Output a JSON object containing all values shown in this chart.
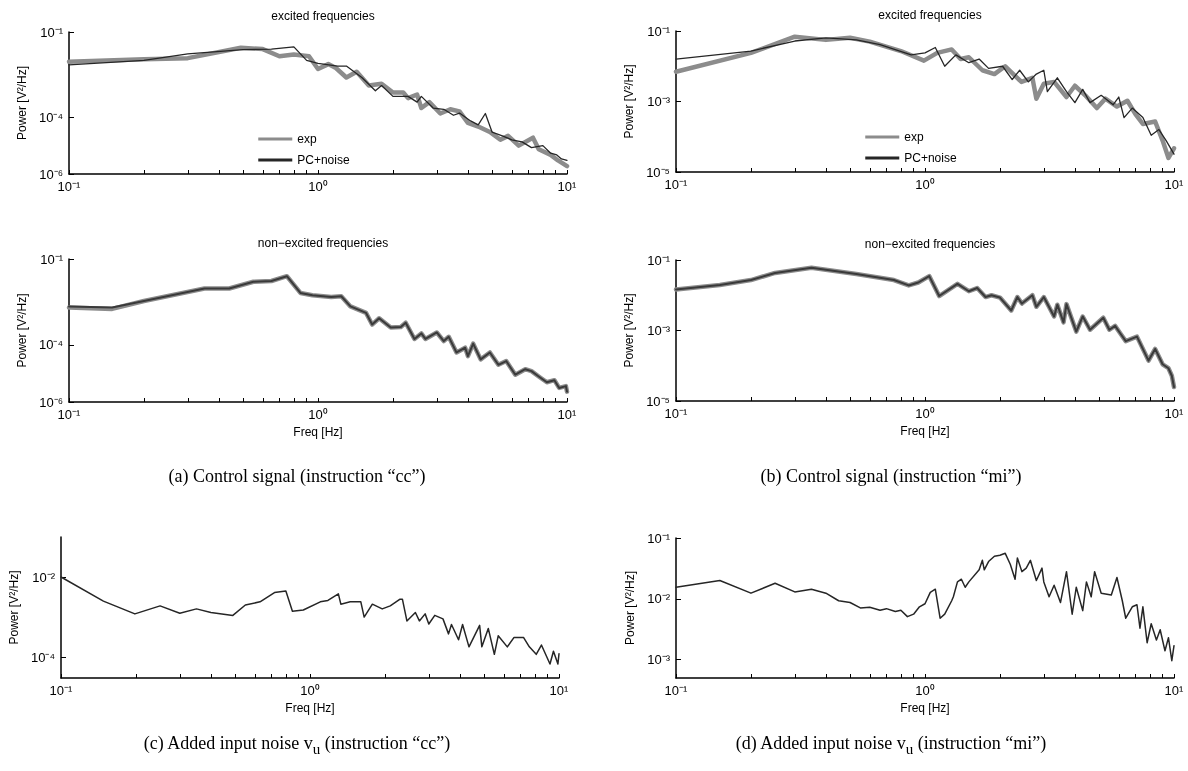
{
  "chart_data": [
    {
      "type": "line",
      "title": "excited frequencies",
      "ylabel": "Power [V²/Hz]",
      "log": "xy",
      "legend": "bottom",
      "xlim": [
        0.1,
        10
      ],
      "xticks": [
        {
          "value": 0.1,
          "label": "10⁻¹"
        },
        {
          "value": 0.2,
          "label": null
        },
        {
          "value": 0.3,
          "label": null
        },
        {
          "value": 0.4,
          "label": null
        },
        {
          "value": 0.5,
          "label": null
        },
        {
          "value": 0.6,
          "label": null
        },
        {
          "value": 0.7,
          "label": null
        },
        {
          "value": 0.8,
          "label": null
        },
        {
          "value": 0.9,
          "label": null
        },
        {
          "value": 1,
          "label": "10⁰"
        },
        {
          "value": 2,
          "label": null
        },
        {
          "value": 3,
          "label": null
        },
        {
          "value": 4,
          "label": null
        },
        {
          "value": 5,
          "label": null
        },
        {
          "value": 6,
          "label": null
        },
        {
          "value": 7,
          "label": null
        },
        {
          "value": 8,
          "label": null
        },
        {
          "value": 9,
          "label": null
        },
        {
          "value": 10,
          "label": "10¹"
        }
      ],
      "ylim": [
        1e-06,
        0.1
      ],
      "yticks": [
        {
          "value": 1e-06,
          "label": "10⁻⁶"
        },
        {
          "value": 0.0001,
          "label": "10⁻⁴"
        },
        {
          "value": 0.1,
          "label": "10⁻¹"
        }
      ],
      "series": [
        {
          "name": "exp",
          "color": "#8c8c8c",
          "x": [
            0.1,
            0.2,
            0.3,
            0.49,
            0.6,
            0.7,
            0.8,
            0.92,
            1.0,
            1.1,
            1.18,
            1.3,
            1.43,
            1.6,
            1.8,
            2.0,
            2.2,
            2.3,
            2.5,
            2.6,
            2.8,
            3.1,
            3.4,
            3.7,
            4.0,
            4.4,
            4.9,
            5.4,
            5.8,
            6.4,
            7.3,
            7.7,
            8.6,
            9.2,
            10
          ],
          "values": [
            0.009,
            0.011,
            0.012,
            0.028,
            0.025,
            0.014,
            0.016,
            0.014,
            0.005,
            0.0074,
            0.0054,
            0.0025,
            0.004,
            0.0013,
            0.0015,
            0.00074,
            0.00074,
            0.00047,
            0.00063,
            0.00021,
            0.00034,
            0.000135,
            0.00019,
            0.00016,
            6.3e-05,
            4.7e-05,
            3e-05,
            1.6e-05,
            2.2e-05,
            1e-05,
            1.9e-05,
            7.4e-06,
            4.7e-06,
            3e-06,
            1.9e-06
          ]
        },
        {
          "name": "PC+noise",
          "color": "#262626",
          "x": [
            0.1,
            0.2,
            0.3,
            0.5,
            0.65,
            0.8,
            0.9,
            1.0,
            1.2,
            1.3,
            1.5,
            1.7,
            1.8,
            2.0,
            2.3,
            2.5,
            2.6,
            2.9,
            3.2,
            3.5,
            3.7,
            4.1,
            4.4,
            4.7,
            5.0,
            5.5,
            6.0,
            6.6,
            7.2,
            8.0,
            8.6,
            9.1,
            9.5,
            10
          ],
          "values": [
            0.007,
            0.01,
            0.017,
            0.024,
            0.025,
            0.03,
            0.01,
            0.0078,
            0.0063,
            0.0063,
            0.0025,
            0.00085,
            0.0013,
            0.00054,
            0.00054,
            0.00034,
            0.00054,
            0.00021,
            0.00019,
            0.000117,
            0.00014,
            7.4e-05,
            5.4e-05,
            0.000135,
            3e-05,
            2.2e-05,
            1.6e-05,
            1.35e-05,
            8.5e-06,
            1e-05,
            5.4e-06,
            4.7e-06,
            3.4e-06,
            3e-06
          ]
        }
      ]
    },
    {
      "type": "line",
      "title": "excited frequencies",
      "ylabel": "Power [V²/Hz]",
      "log": "xy",
      "legend": "bottom",
      "xlim": [
        0.1,
        10
      ],
      "xticks": [
        {
          "value": 0.1,
          "label": "10⁻¹"
        },
        {
          "value": 0.2,
          "label": null
        },
        {
          "value": 0.3,
          "label": null
        },
        {
          "value": 0.4,
          "label": null
        },
        {
          "value": 0.5,
          "label": null
        },
        {
          "value": 0.6,
          "label": null
        },
        {
          "value": 0.7,
          "label": null
        },
        {
          "value": 0.8,
          "label": null
        },
        {
          "value": 0.9,
          "label": null
        },
        {
          "value": 1,
          "label": "10⁰"
        },
        {
          "value": 2,
          "label": null
        },
        {
          "value": 3,
          "label": null
        },
        {
          "value": 4,
          "label": null
        },
        {
          "value": 5,
          "label": null
        },
        {
          "value": 6,
          "label": null
        },
        {
          "value": 7,
          "label": null
        },
        {
          "value": 8,
          "label": null
        },
        {
          "value": 9,
          "label": null
        },
        {
          "value": 10,
          "label": "10¹"
        }
      ],
      "ylim": [
        1e-05,
        0.1
      ],
      "yticks": [
        {
          "value": 1e-05,
          "label": "10⁻⁵"
        },
        {
          "value": 0.001,
          "label": "10⁻³"
        },
        {
          "value": 0.1,
          "label": "10⁻¹"
        }
      ],
      "series": [
        {
          "name": "exp",
          "color": "#8c8c8c",
          "x": [
            0.1,
            0.2,
            0.3,
            0.4,
            0.5,
            0.6,
            0.8,
            0.99,
            1.12,
            1.28,
            1.39,
            1.5,
            1.7,
            1.9,
            2.1,
            2.3,
            2.44,
            2.7,
            2.8,
            3.0,
            3.3,
            3.7,
            4.0,
            4.4,
            4.9,
            5.3,
            5.9,
            6.5,
            7.0,
            7.5,
            8.4,
            9.0,
            9.5,
            10
          ],
          "values": [
            0.007,
            0.024,
            0.069,
            0.056,
            0.064,
            0.05,
            0.027,
            0.0144,
            0.024,
            0.03,
            0.016,
            0.018,
            0.0077,
            0.006,
            0.01,
            0.0053,
            0.0036,
            0.0047,
            0.0012,
            0.0032,
            0.0036,
            0.00134,
            0.0028,
            0.0015,
            0.00065,
            0.0012,
            0.00072,
            0.00105,
            0.00044,
            0.00023,
            0.00027,
            7.8e-05,
            2.5e-05,
            4.7e-05
          ]
        },
        {
          "name": "PC+noise",
          "color": "#262626",
          "x": [
            0.1,
            0.2,
            0.3,
            0.4,
            0.53,
            0.66,
            0.88,
            1.0,
            1.1,
            1.2,
            1.33,
            1.5,
            1.65,
            1.8,
            2.05,
            2.24,
            2.4,
            2.6,
            2.8,
            3.0,
            3.1,
            3.4,
            3.7,
            4.0,
            4.3,
            4.6,
            5.1,
            5.7,
            6.0,
            6.3,
            6.8,
            7.5,
            8.1,
            8.7,
            9.3,
            10
          ],
          "values": [
            0.016,
            0.027,
            0.052,
            0.064,
            0.056,
            0.041,
            0.021,
            0.024,
            0.034,
            0.01,
            0.021,
            0.0126,
            0.016,
            0.0087,
            0.01,
            0.0042,
            0.0077,
            0.0036,
            0.006,
            0.0077,
            0.0019,
            0.0047,
            0.0019,
            0.00093,
            0.0022,
            0.00093,
            0.0015,
            0.00081,
            0.00134,
            0.00035,
            0.00065,
            0.00035,
            0.00011,
            0.00016,
            7.8e-05,
            3.2e-05
          ]
        }
      ]
    },
    {
      "type": "line",
      "title": "non−excited frequencies",
      "xlabel": "Freq [Hz]",
      "ylabel": "Power [V²/Hz]",
      "log": "xy",
      "annotations": [
        "(a)  Control signal (instruction “cc”)"
      ],
      "xlim": [
        0.1,
        10
      ],
      "xticks": [
        {
          "value": 0.1,
          "label": "10⁻¹"
        },
        {
          "value": 0.2,
          "label": null
        },
        {
          "value": 0.3,
          "label": null
        },
        {
          "value": 0.4,
          "label": null
        },
        {
          "value": 0.5,
          "label": null
        },
        {
          "value": 0.6,
          "label": null
        },
        {
          "value": 0.7,
          "label": null
        },
        {
          "value": 0.8,
          "label": null
        },
        {
          "value": 0.9,
          "label": null
        },
        {
          "value": 1,
          "label": "10⁰"
        },
        {
          "value": 2,
          "label": null
        },
        {
          "value": 3,
          "label": null
        },
        {
          "value": 4,
          "label": null
        },
        {
          "value": 5,
          "label": null
        },
        {
          "value": 6,
          "label": null
        },
        {
          "value": 7,
          "label": null
        },
        {
          "value": 8,
          "label": null
        },
        {
          "value": 9,
          "label": null
        },
        {
          "value": 10,
          "label": "10¹"
        }
      ],
      "ylim": [
        1e-06,
        0.1
      ],
      "yticks": [
        {
          "value": 1e-06,
          "label": "10⁻⁶"
        },
        {
          "value": 0.0001,
          "label": "10⁻⁴"
        },
        {
          "value": 0.1,
          "label": "10⁻¹"
        }
      ],
      "series": [
        {
          "color": "#8c8c8c",
          "x": [
            0.1,
            0.149,
            0.2,
            0.35,
            0.44,
            0.55,
            0.65,
            0.75,
            0.85,
            0.95,
            1.13,
            1.24,
            1.35,
            1.56,
            1.65,
            1.76,
            1.96,
            2.15,
            2.25,
            2.44,
            2.6,
            2.7,
            3.0,
            3.2,
            3.35,
            3.6,
            3.9,
            4.0,
            4.2,
            4.5,
            4.9,
            5.3,
            5.7,
            6.2,
            6.8,
            7.2,
            7.7,
            8.3,
            8.9,
            9.3,
            9.9,
            10
          ],
          "values": [
            0.002,
            0.0018,
            0.0034,
            0.0093,
            0.0093,
            0.016,
            0.017,
            0.025,
            0.0065,
            0.0054,
            0.0047,
            0.005,
            0.0022,
            0.0013,
            0.00051,
            0.00085,
            0.0004,
            0.00042,
            0.00059,
            0.00016,
            0.00025,
            0.00016,
            0.00027,
            0.000135,
            0.00019,
            5.4e-05,
            7.9e-05,
            4e-05,
            0.00011,
            3.1e-05,
            5.4e-05,
            2e-05,
            2.7e-05,
            9e-06,
            1.4e-05,
            1.2e-05,
            7.8e-06,
            4.9e-06,
            5.8e-06,
            3.1e-06,
            3.6e-06,
            2.3e-06
          ]
        },
        {
          "color": "#3a3a3a",
          "x": [
            0.1,
            0.149,
            0.2,
            0.35,
            0.44,
            0.55,
            0.65,
            0.75,
            0.85,
            0.95,
            1.13,
            1.24,
            1.35,
            1.56,
            1.65,
            1.76,
            1.96,
            2.15,
            2.25,
            2.44,
            2.6,
            2.7,
            3.0,
            3.2,
            3.35,
            3.6,
            3.9,
            4.0,
            4.2,
            4.5,
            4.9,
            5.3,
            5.7,
            6.2,
            6.8,
            7.2,
            7.7,
            8.3,
            8.9,
            9.3,
            9.9,
            10
          ],
          "values": [
            0.0022,
            0.002,
            0.0034,
            0.0093,
            0.0093,
            0.016,
            0.017,
            0.025,
            0.0065,
            0.0054,
            0.0047,
            0.005,
            0.0022,
            0.0013,
            0.00051,
            0.00085,
            0.0004,
            0.00042,
            0.00059,
            0.00016,
            0.00025,
            0.00016,
            0.00027,
            0.000135,
            0.00019,
            5.4e-05,
            7.9e-05,
            4e-05,
            0.00011,
            3.1e-05,
            5.4e-05,
            2e-05,
            2.7e-05,
            9e-06,
            1.4e-05,
            1.2e-05,
            7.8e-06,
            4.9e-06,
            5.8e-06,
            3.1e-06,
            3.6e-06,
            2.3e-06
          ]
        }
      ]
    },
    {
      "type": "line",
      "title": "non−excited frequencies",
      "xlabel": "Freq [Hz]",
      "ylabel": "Power [V²/Hz]",
      "log": "xy",
      "annotations": [
        "(b)  Control signal (instruction “mi”)"
      ],
      "xlim": [
        0.1,
        10
      ],
      "xticks": [
        {
          "value": 0.1,
          "label": "10⁻¹"
        },
        {
          "value": 0.2,
          "label": null
        },
        {
          "value": 0.3,
          "label": null
        },
        {
          "value": 0.4,
          "label": null
        },
        {
          "value": 0.5,
          "label": null
        },
        {
          "value": 0.6,
          "label": null
        },
        {
          "value": 0.7,
          "label": null
        },
        {
          "value": 0.8,
          "label": null
        },
        {
          "value": 0.9,
          "label": null
        },
        {
          "value": 1,
          "label": "10⁰"
        },
        {
          "value": 2,
          "label": null
        },
        {
          "value": 3,
          "label": null
        },
        {
          "value": 4,
          "label": null
        },
        {
          "value": 5,
          "label": null
        },
        {
          "value": 6,
          "label": null
        },
        {
          "value": 7,
          "label": null
        },
        {
          "value": 8,
          "label": null
        },
        {
          "value": 9,
          "label": null
        },
        {
          "value": 10,
          "label": "10¹"
        }
      ],
      "ylim": [
        1e-05,
        0.1
      ],
      "yticks": [
        {
          "value": 1e-05,
          "label": "10⁻⁵"
        },
        {
          "value": 0.001,
          "label": "10⁻³"
        },
        {
          "value": 0.1,
          "label": "10⁻¹"
        }
      ],
      "series": [
        {
          "color": "#8c8c8c",
          "x": [
            0.1,
            0.15,
            0.2,
            0.25,
            0.35,
            0.53,
            0.75,
            0.86,
            0.94,
            1.04,
            1.14,
            1.35,
            1.5,
            1.62,
            1.75,
            1.85,
            2.0,
            2.22,
            2.35,
            2.45,
            2.7,
            2.8,
            3.0,
            3.3,
            3.4,
            3.6,
            3.7,
            4.05,
            4.3,
            4.6,
            5.2,
            5.5,
            5.8,
            6.1,
            6.4,
            7.1,
            7.9,
            8.4,
            9.0,
            9.5,
            9.8,
            10
          ],
          "values": [
            0.0146,
            0.0196,
            0.027,
            0.043,
            0.06,
            0.04,
            0.027,
            0.019,
            0.023,
            0.035,
            0.0095,
            0.021,
            0.013,
            0.016,
            0.0089,
            0.01,
            0.0086,
            0.0037,
            0.0089,
            0.0058,
            0.01,
            0.0047,
            0.0089,
            0.0025,
            0.0054,
            0.0017,
            0.0056,
            0.00093,
            0.0025,
            0.00105,
            0.0023,
            0.00105,
            0.00135,
            0.00081,
            0.0005,
            0.00067,
            0.00014,
            0.0003,
            0.00011,
            8.5e-05,
            5.2e-05,
            2.5e-05
          ]
        },
        {
          "color": "#3a3a3a",
          "x": [
            0.1,
            0.15,
            0.2,
            0.25,
            0.35,
            0.53,
            0.75,
            0.86,
            0.94,
            1.04,
            1.14,
            1.35,
            1.5,
            1.62,
            1.75,
            1.85,
            2.0,
            2.22,
            2.35,
            2.45,
            2.7,
            2.8,
            3.0,
            3.3,
            3.4,
            3.6,
            3.7,
            4.05,
            4.3,
            4.6,
            5.2,
            5.5,
            5.8,
            6.1,
            6.4,
            7.1,
            7.9,
            8.4,
            9.0,
            9.5,
            9.8,
            10
          ],
          "values": [
            0.0146,
            0.0196,
            0.027,
            0.043,
            0.06,
            0.04,
            0.027,
            0.019,
            0.023,
            0.035,
            0.0095,
            0.021,
            0.013,
            0.016,
            0.0089,
            0.01,
            0.0086,
            0.0037,
            0.0089,
            0.0058,
            0.01,
            0.0047,
            0.0089,
            0.0025,
            0.0054,
            0.0017,
            0.0056,
            0.00093,
            0.0025,
            0.00105,
            0.0023,
            0.00105,
            0.00135,
            0.00081,
            0.0005,
            0.00067,
            0.00014,
            0.0003,
            0.00011,
            8.5e-05,
            5.2e-05,
            2.5e-05
          ]
        }
      ]
    },
    {
      "type": "line",
      "xlabel": "Freq [Hz]",
      "ylabel": "Power [V²/Hz]",
      "log": "xy",
      "annotations": [
        "(c)  Added input noise v$_{u}$ (instruction “cc”)"
      ],
      "xlim": [
        0.1,
        10
      ],
      "xticks": [
        {
          "value": 0.1,
          "label": "10⁻¹"
        },
        {
          "value": 0.2,
          "label": null
        },
        {
          "value": 0.3,
          "label": null
        },
        {
          "value": 0.4,
          "label": null
        },
        {
          "value": 0.5,
          "label": null
        },
        {
          "value": 0.6,
          "label": null
        },
        {
          "value": 0.7,
          "label": null
        },
        {
          "value": 0.8,
          "label": null
        },
        {
          "value": 0.9,
          "label": null
        },
        {
          "value": 1,
          "label": "10⁰"
        },
        {
          "value": 2,
          "label": null
        },
        {
          "value": 3,
          "label": null
        },
        {
          "value": 4,
          "label": null
        },
        {
          "value": 5,
          "label": null
        },
        {
          "value": 6,
          "label": null
        },
        {
          "value": 7,
          "label": null
        },
        {
          "value": 8,
          "label": null
        },
        {
          "value": 9,
          "label": null
        },
        {
          "value": 10,
          "label": "10¹"
        }
      ],
      "ylim": [
        3e-05,
        0.1
      ],
      "yticks": [
        {
          "value": 0.0001,
          "label": "10⁻⁴"
        },
        {
          "value": 0.01,
          "label": "10⁻²"
        }
      ],
      "series": [
        {
          "color": "#262626",
          "x": [
            0.1,
            0.148,
            0.198,
            0.25,
            0.3,
            0.35,
            0.4,
            0.49,
            0.55,
            0.63,
            0.72,
            0.8,
            0.85,
            0.94,
            1.1,
            1.18,
            1.3,
            1.33,
            1.45,
            1.6,
            1.65,
            1.78,
            1.95,
            2.1,
            2.3,
            2.35,
            2.45,
            2.65,
            2.75,
            2.9,
            3.0,
            3.17,
            3.42,
            3.6,
            3.7,
            3.95,
            4.1,
            4.35,
            4.8,
            4.9,
            5.2,
            5.5,
            5.7,
            6.2,
            6.6,
            7.2,
            7.6,
            8.1,
            8.5,
            9.2,
            9.5,
            9.9,
            10
          ],
          "values": [
            0.01,
            0.0025,
            0.0012,
            0.0019,
            0.00124,
            0.0016,
            0.0013,
            0.0011,
            0.002,
            0.0024,
            0.0041,
            0.0045,
            0.0014,
            0.0015,
            0.0024,
            0.0026,
            0.0038,
            0.0021,
            0.0024,
            0.0024,
            0.001,
            0.0021,
            0.0016,
            0.0019,
            0.0028,
            0.0028,
            0.0008,
            0.0013,
            0.0008,
            0.0012,
            0.00067,
            0.0011,
            0.0009,
            0.00038,
            0.00065,
            0.00027,
            0.00065,
            0.00018,
            0.00062,
            0.00018,
            0.00052,
            0.000117,
            0.00034,
            0.00018,
            0.00031,
            0.00031,
            0.00018,
            0.000117,
            0.0002,
            6.7e-05,
            0.00014,
            6.7e-05,
            0.000121
          ]
        }
      ]
    },
    {
      "type": "line",
      "xlabel": "Freq [Hz]",
      "ylabel": "Power [V²/Hz]",
      "log": "xy",
      "annotations": [
        "(d)  Added input noise v$_{u}$ (instruction “mi”)"
      ],
      "xlim": [
        0.1,
        10
      ],
      "xticks": [
        {
          "value": 0.1,
          "label": "10⁻¹"
        },
        {
          "value": 0.2,
          "label": null
        },
        {
          "value": 0.3,
          "label": null
        },
        {
          "value": 0.4,
          "label": null
        },
        {
          "value": 0.5,
          "label": null
        },
        {
          "value": 0.6,
          "label": null
        },
        {
          "value": 0.7,
          "label": null
        },
        {
          "value": 0.8,
          "label": null
        },
        {
          "value": 0.9,
          "label": null
        },
        {
          "value": 1,
          "label": "10⁰"
        },
        {
          "value": 2,
          "label": null
        },
        {
          "value": 3,
          "label": null
        },
        {
          "value": 4,
          "label": null
        },
        {
          "value": 5,
          "label": null
        },
        {
          "value": 6,
          "label": null
        },
        {
          "value": 7,
          "label": null
        },
        {
          "value": 8,
          "label": null
        },
        {
          "value": 9,
          "label": null
        },
        {
          "value": 10,
          "label": "10¹"
        }
      ],
      "ylim": [
        0.0005,
        0.1
      ],
      "yticks": [
        {
          "value": 0.001,
          "label": "10⁻³"
        },
        {
          "value": 0.01,
          "label": "10⁻²"
        },
        {
          "value": 0.1,
          "label": "10⁻¹"
        }
      ],
      "series": [
        {
          "color": "#262626",
          "x": [
            0.1,
            0.15,
            0.2,
            0.25,
            0.3,
            0.35,
            0.4,
            0.45,
            0.5,
            0.55,
            0.6,
            0.66,
            0.7,
            0.76,
            0.8,
            0.85,
            0.9,
            0.95,
            1.0,
            1.05,
            1.1,
            1.15,
            1.2,
            1.28,
            1.3,
            1.35,
            1.4,
            1.45,
            1.5,
            1.65,
            1.7,
            1.73,
            1.8,
            1.9,
            2.0,
            2.1,
            2.2,
            2.3,
            2.35,
            2.45,
            2.55,
            2.65,
            2.8,
            2.95,
            3.0,
            3.15,
            3.3,
            3.5,
            3.7,
            3.9,
            4.05,
            4.3,
            4.45,
            4.65,
            4.8,
            5.1,
            5.6,
            5.9,
            6.2,
            6.4,
            6.8,
            7.1,
            7.3,
            7.5,
            7.8,
            8.1,
            8.5,
            8.8,
            9.2,
            9.5,
            9.8,
            10
          ],
          "values": [
            0.0155,
            0.02,
            0.0124,
            0.018,
            0.013,
            0.0144,
            0.0124,
            0.0093,
            0.0087,
            0.0071,
            0.0073,
            0.0065,
            0.0069,
            0.0062,
            0.0065,
            0.0051,
            0.0056,
            0.0074,
            0.0083,
            0.0128,
            0.0144,
            0.0048,
            0.0056,
            0.0093,
            0.0108,
            0.019,
            0.021,
            0.0155,
            0.019,
            0.03,
            0.043,
            0.03,
            0.041,
            0.05,
            0.052,
            0.056,
            0.037,
            0.021,
            0.047,
            0.028,
            0.032,
            0.043,
            0.02,
            0.032,
            0.019,
            0.0108,
            0.0167,
            0.0087,
            0.028,
            0.0056,
            0.0155,
            0.0064,
            0.019,
            0.0108,
            0.028,
            0.0124,
            0.0116,
            0.0224,
            0.0093,
            0.0048,
            0.0074,
            0.008,
            0.0033,
            0.0074,
            0.0019,
            0.0039,
            0.0021,
            0.0031,
            0.0014,
            0.0023,
            0.00096,
            0.0017
          ]
        }
      ]
    }
  ]
}
